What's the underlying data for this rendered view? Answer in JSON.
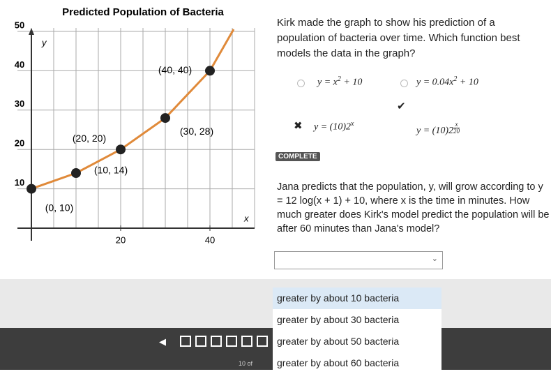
{
  "graph": {
    "title": "Predicted Population of Bacteria",
    "x_label": "x",
    "y_label": "y",
    "xlim": [
      0,
      50
    ],
    "ylim": [
      0,
      50
    ],
    "xticks": [
      20,
      40
    ],
    "yticks": [
      10,
      20,
      30,
      40,
      50
    ],
    "points": [
      {
        "x": 0,
        "y": 10,
        "label": "(0, 10)"
      },
      {
        "x": 10,
        "y": 14,
        "label": "(10, 14)"
      },
      {
        "x": 20,
        "y": 20,
        "label": "(20, 20)"
      },
      {
        "x": 30,
        "y": 28,
        "label": "(30, 28)"
      },
      {
        "x": 40,
        "y": 40,
        "label": "(40, 40)"
      }
    ]
  },
  "question1": {
    "text": "Kirk made the graph to show his prediction of a population of bacteria over time. Which function best models the data in the graph?",
    "options": [
      {
        "text": "y = x",
        "sup": "2",
        "after": " + 10"
      },
      {
        "text": "y = 0.04x",
        "sup": "2",
        "after": " + 10"
      },
      {
        "text": "y = (10)2",
        "sup": "x"
      },
      {
        "text": "y = (10)2",
        "frac": [
          "x",
          "20"
        ]
      }
    ],
    "status": "COMPLETE"
  },
  "question2": {
    "text": "Jana predicts that the population, y, will grow according to y = 12 log(x + 1) + 10, where x is the time in minutes. How much greater does Kirk's model predict the population will be after 60 minutes than Jana's model?",
    "dropdown_options": [
      "greater by about 10 bacteria",
      "greater by about 30 bacteria",
      "greater by about 50 bacteria",
      "greater by about 60 bacteria"
    ]
  },
  "footer": {
    "page": "10 of"
  }
}
